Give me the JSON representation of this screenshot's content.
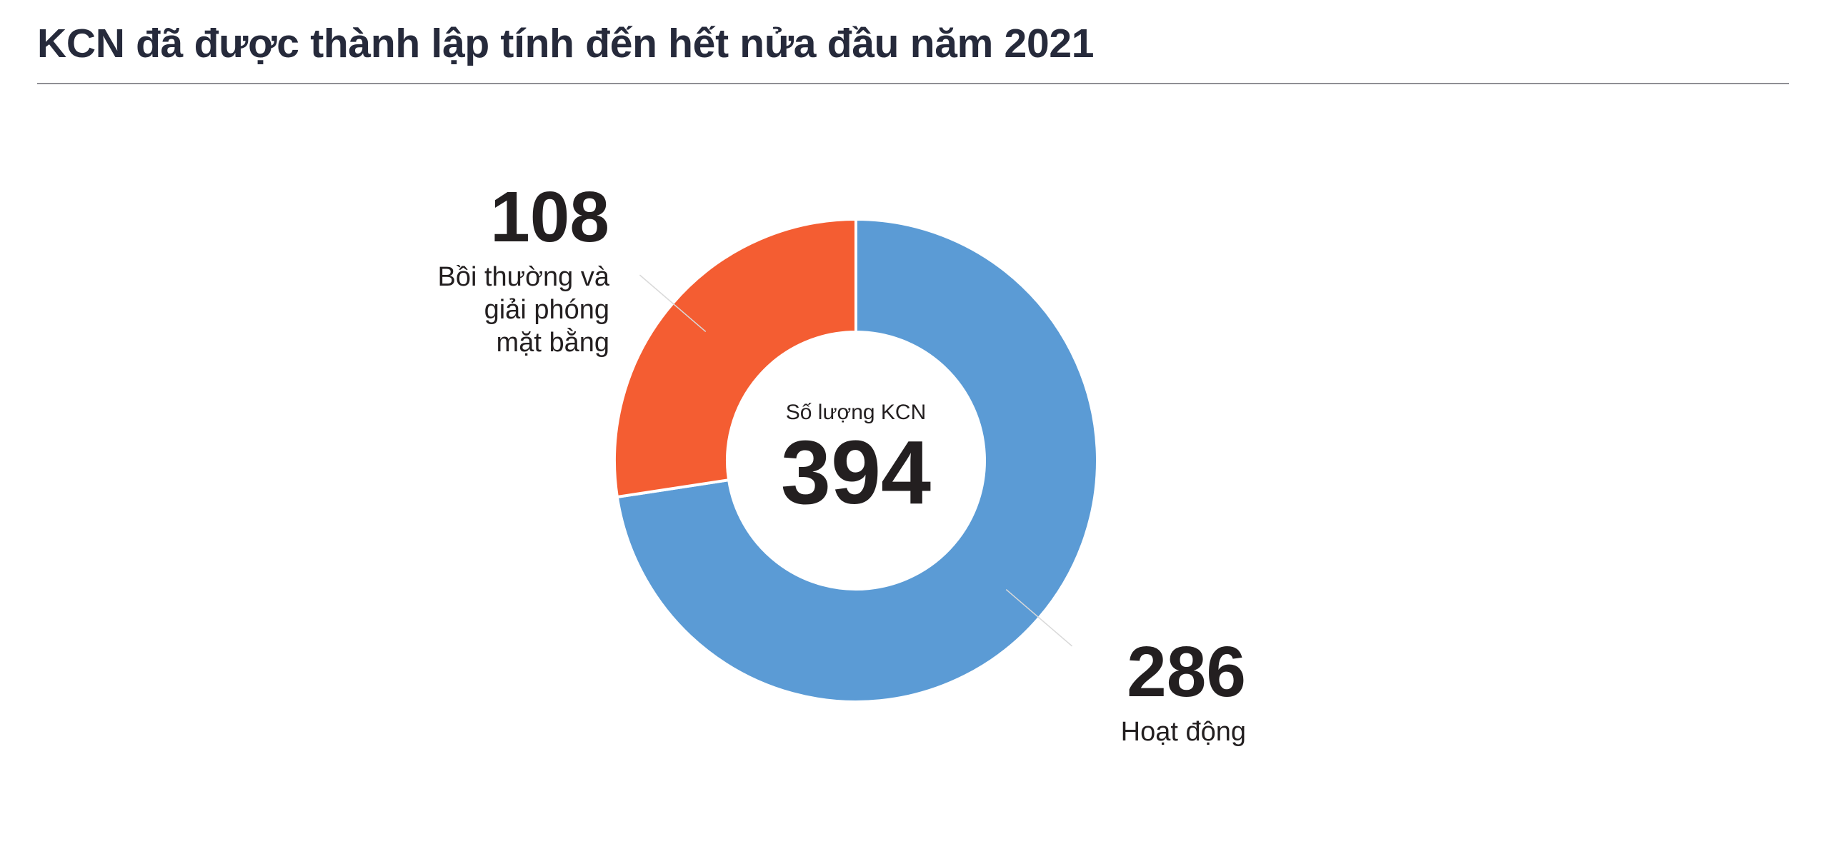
{
  "title": "KCN đã được thành lập tính đến hết nửa đầu năm 2021",
  "chart_data": {
    "type": "pie",
    "variant": "donut",
    "center_label": "Số lượng KCN",
    "center_value": "394",
    "total": 394,
    "slices": [
      {
        "label": "Hoạt động",
        "value": 286,
        "value_text": "286",
        "label_lines": [
          "Hoạt động"
        ],
        "color": "#5b9bd5"
      },
      {
        "label": "Bồi thường và giải phóng mặt bằng",
        "value": 108,
        "value_text": "108",
        "label_lines": [
          "Bồi thường và",
          "giải phóng",
          "mặt bằng"
        ],
        "color": "#f45d32"
      }
    ],
    "legend": "none"
  }
}
